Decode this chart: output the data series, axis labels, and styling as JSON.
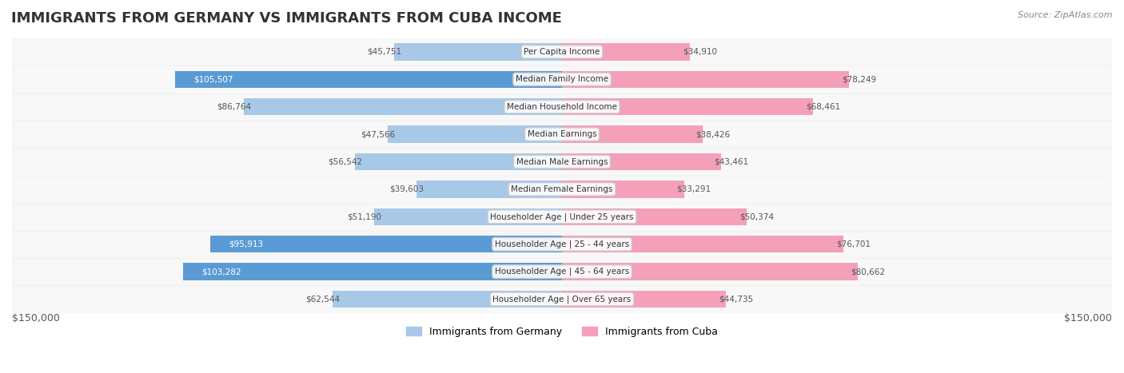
{
  "title": "IMMIGRANTS FROM GERMANY VS IMMIGRANTS FROM CUBA INCOME",
  "source": "Source: ZipAtlas.com",
  "categories": [
    "Per Capita Income",
    "Median Family Income",
    "Median Household Income",
    "Median Earnings",
    "Median Male Earnings",
    "Median Female Earnings",
    "Householder Age | Under 25 years",
    "Householder Age | 25 - 44 years",
    "Householder Age | 45 - 64 years",
    "Householder Age | Over 65 years"
  ],
  "germany_values": [
    45751,
    105507,
    86764,
    47566,
    56542,
    39603,
    51190,
    95913,
    103282,
    62544
  ],
  "cuba_values": [
    34910,
    78249,
    68461,
    38426,
    43461,
    33291,
    50374,
    76701,
    80662,
    44735
  ],
  "germany_labels": [
    "$45,751",
    "$105,507",
    "$86,764",
    "$47,566",
    "$56,542",
    "$39,603",
    "$51,190",
    "$95,913",
    "$103,282",
    "$62,544"
  ],
  "cuba_labels": [
    "$34,910",
    "$78,249",
    "$68,461",
    "$38,426",
    "$43,461",
    "$33,291",
    "$50,374",
    "$76,701",
    "$80,662",
    "$44,735"
  ],
  "max_val": 150000,
  "germany_color_light": "#a8c8e8",
  "germany_color_dark": "#5b9bd5",
  "cuba_color_light": "#f4a0b8",
  "cuba_color_dark": "#e05080",
  "threshold_dark": 90000,
  "background_color": "#ffffff",
  "row_bg": "#f0f0f0",
  "row_bg_alt": "#ffffff",
  "legend_germany": "Immigrants from Germany",
  "legend_cuba": "Immigrants from Cuba",
  "ylabel_left": "$150,000",
  "ylabel_right": "$150,000"
}
